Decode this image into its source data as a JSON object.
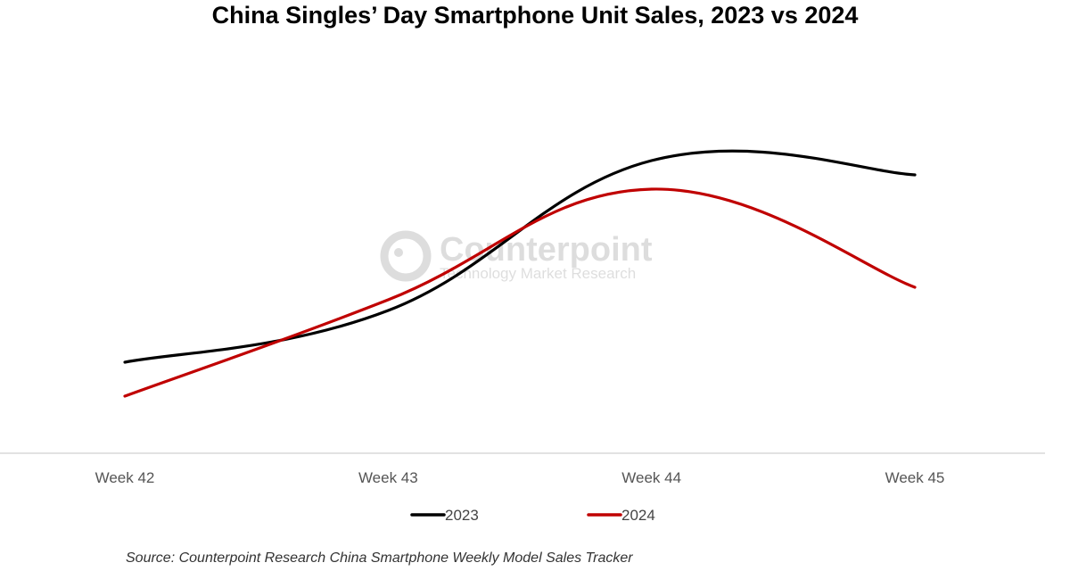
{
  "chart_data": {
    "type": "line",
    "title": "China Singles’ Day Smartphone Unit Sales, 2023 vs 2024",
    "xlabel": "",
    "ylabel": "",
    "categories": [
      "Week 42",
      "Week 43",
      "Week 44",
      "Week 45"
    ],
    "series": [
      {
        "name": "2023",
        "color": "#000000",
        "values": [
          25.5,
          40,
          82,
          78
        ]
      },
      {
        "name": "2024",
        "color": "#c00000",
        "values": [
          16,
          43,
          74,
          46.5
        ]
      }
    ],
    "ylim": [
      0,
      102
    ],
    "y_axis_shown": false,
    "grid": false,
    "legend_position": "bottom-center",
    "smooth": true,
    "source": "Source: Counterpoint Research China Smartphone Weekly Model Sales Tracker",
    "watermark": {
      "name": "Counterpoint",
      "tagline": "Technology Market Research"
    }
  }
}
